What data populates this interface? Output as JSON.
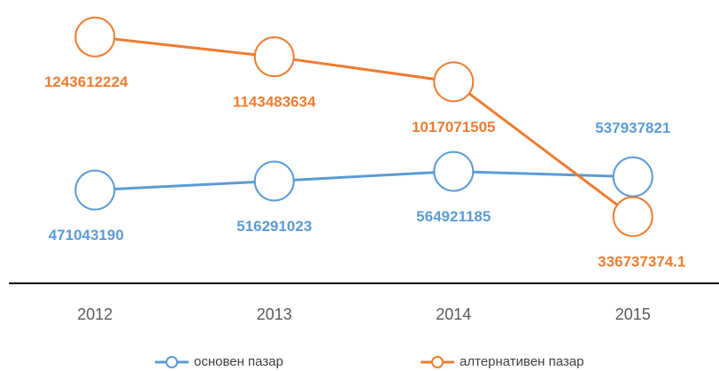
{
  "chart_data": {
    "type": "line",
    "categories": [
      "2012",
      "2013",
      "2014",
      "2015"
    ],
    "series": [
      {
        "name": "основен пазар",
        "color": "#5b9bd5",
        "values": [
          471043190,
          516291023,
          564921185,
          537937821
        ]
      },
      {
        "name": "алтернативен пазар",
        "color": "#ed7d31",
        "values": [
          1243612224,
          1143483634,
          1017071505,
          336737374.1
        ]
      }
    ],
    "ylim": [
      0,
      1430000000
    ]
  }
}
